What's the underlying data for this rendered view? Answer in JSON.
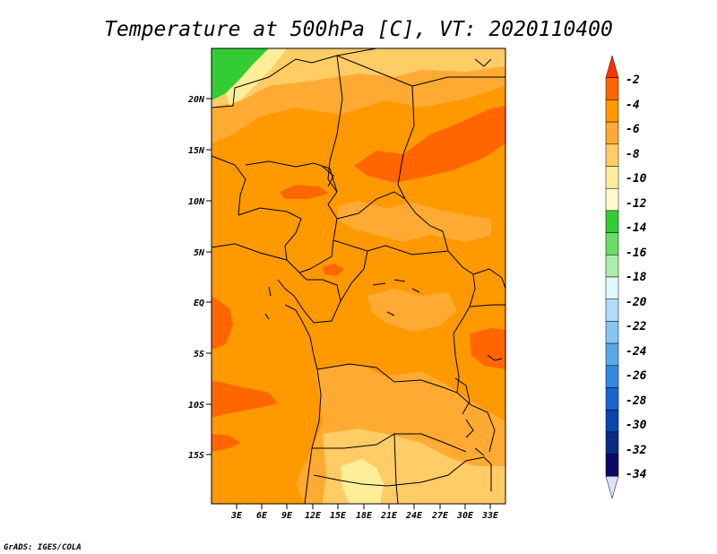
{
  "title": "Temperature at 500hPa [C], VT: 2020110400",
  "credit": "GrADS: IGES/COLA",
  "lat_labels": [
    "20N",
    "15N",
    "10N",
    "5N",
    "EQ",
    "5S",
    "10S",
    "15S"
  ],
  "lon_labels": [
    "3E",
    "6E",
    "9E",
    "12E",
    "15E",
    "18E",
    "21E",
    "24E",
    "27E",
    "30E",
    "33E"
  ],
  "colorbar": {
    "labels": [
      "-2",
      "-4",
      "-6",
      "-8",
      "-10",
      "-12",
      "-14",
      "-16",
      "-18",
      "-20",
      "-22",
      "-24",
      "-26",
      "-28",
      "-30",
      "-32",
      "-34"
    ],
    "colors": [
      "#ff3300",
      "#ff6600",
      "#ff9900",
      "#ffaa33",
      "#ffcc66",
      "#ffee99",
      "#fffbcc",
      "#33cc33",
      "#66dd66",
      "#aaeeaa",
      "#e0f8ff",
      "#b0dcf8",
      "#88c4f0",
      "#5aa8e8",
      "#3388e0",
      "#1a66cc",
      "#0b44aa",
      "#082a80",
      "#0a0a66",
      "#dde0ff"
    ]
  },
  "field_colors": {
    "warm": "#ff6600",
    "main": "#ff9900",
    "light": "#ffaa33",
    "pale": "#ffcc66",
    "cool": "#33cc33"
  }
}
